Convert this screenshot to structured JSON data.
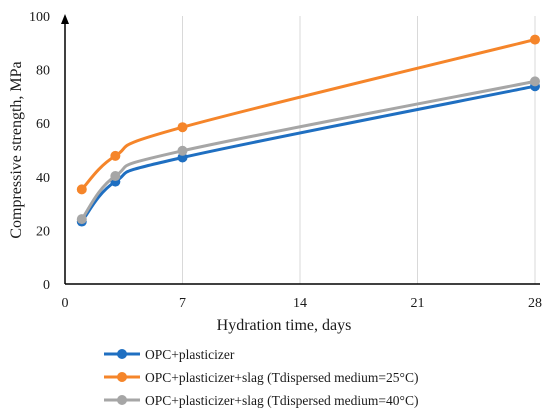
{
  "chart_data": {
    "type": "line",
    "title": "",
    "xlabel": "Hydration time, days",
    "ylabel": "Compressive strength, MPa",
    "xlim": [
      0,
      28
    ],
    "ylim": [
      0,
      100
    ],
    "x_ticks": [
      0,
      7,
      14,
      21,
      28
    ],
    "y_ticks": [
      0,
      20,
      40,
      60,
      80,
      100
    ],
    "grid": "vertical gridlines",
    "legend_position": "bottom",
    "series": [
      {
        "name": "OPC+plasticizer",
        "color": "#1f6fc1",
        "x": [
          1,
          3,
          7,
          28
        ],
        "y": [
          23.3,
          38.2,
          47.2,
          73.8
        ]
      },
      {
        "name": "OPC+plasticizer+slag  (Tdispersed medium=25°C)",
        "color": "#f5852a",
        "x": [
          1,
          3,
          7,
          28
        ],
        "y": [
          35.3,
          47.8,
          58.5,
          91.2
        ]
      },
      {
        "name": "OPC+plasticizer+slag  (Tdispersed medium=40°C)",
        "color": "#a6a6a6",
        "x": [
          1,
          3,
          7,
          28
        ],
        "y": [
          24.2,
          40.3,
          49.7,
          75.6
        ]
      }
    ]
  }
}
